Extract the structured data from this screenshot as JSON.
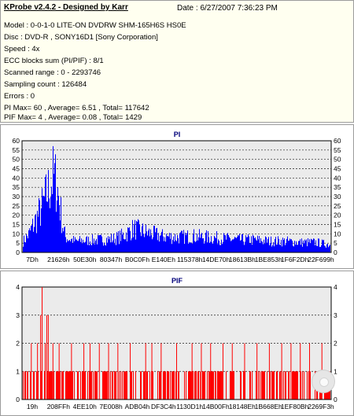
{
  "info": {
    "title": "KProbe v2.4.2 - Designed by Karr",
    "date": "Date : 6/27/2007 7:36:23 PM",
    "lines": [
      "Model : 0-0-1-0 LITE-ON DVDRW SHM-165H6S HS0E",
      "Disc : DVD-R , SONY16D1 [Sony Corporation]",
      "Speed : 4x",
      "ECC blocks sum (PI/PIF) : 8/1",
      "Scanned range : 0 - 2293746",
      "Sampling count : 126484",
      "Errors : 0",
      "PI Max= 60 , Average= 6.51 , Total= 117642",
      "PIF Max= 4 , Average= 0.08 , Total= 1429"
    ]
  },
  "chart_data": [
    {
      "type": "bar",
      "title": "PI",
      "ylim": [
        0,
        60
      ],
      "yticks": [
        0,
        5,
        10,
        15,
        20,
        25,
        30,
        35,
        40,
        45,
        50,
        55,
        60
      ],
      "xtick_labels": [
        "7Dh",
        "21626h",
        "50E30h",
        "80347h",
        "B0C0Fh",
        "E140Eh",
        "115378h",
        "14DE70h",
        "18613Bh",
        "1BE853h",
        "1F6F2Dh",
        "22F699h"
      ],
      "grid": true,
      "bar_color": "#0000ff",
      "envelope": [
        [
          0,
          8
        ],
        [
          0.02,
          14
        ],
        [
          0.04,
          24
        ],
        [
          0.06,
          34
        ],
        [
          0.08,
          47
        ],
        [
          0.1,
          60
        ],
        [
          0.11,
          56
        ],
        [
          0.12,
          40
        ],
        [
          0.13,
          22
        ],
        [
          0.14,
          12
        ],
        [
          0.17,
          9
        ],
        [
          0.25,
          10
        ],
        [
          0.3,
          11
        ],
        [
          0.33,
          14
        ],
        [
          0.36,
          19
        ],
        [
          0.4,
          16
        ],
        [
          0.45,
          13
        ],
        [
          0.5,
          12
        ],
        [
          0.55,
          13
        ],
        [
          0.6,
          12
        ],
        [
          0.65,
          11
        ],
        [
          0.7,
          10
        ],
        [
          0.75,
          10
        ],
        [
          0.8,
          9
        ],
        [
          0.85,
          9
        ],
        [
          0.9,
          8
        ],
        [
          0.95,
          8
        ],
        [
          1.0,
          6
        ]
      ]
    },
    {
      "type": "bar",
      "title": "PIF",
      "ylim": [
        0,
        4
      ],
      "yticks": [
        0,
        1,
        2,
        3,
        4
      ],
      "xtick_labels": [
        "19h",
        "208FFh",
        "4EE10h",
        "7E008h",
        "ADB04h",
        "DF3C4h",
        "1130D1h",
        "14B00Fh",
        "18148Eh",
        "1B668Eh",
        "1EF80Bh",
        "2269F3h"
      ],
      "grid": true,
      "bar_color": "#ff0000",
      "spikes": [
        [
          0.03,
          2
        ],
        [
          0.05,
          2
        ],
        [
          0.06,
          3
        ],
        [
          0.065,
          4
        ],
        [
          0.075,
          2
        ],
        [
          0.08,
          3
        ],
        [
          0.085,
          3
        ],
        [
          0.1,
          2
        ],
        [
          0.12,
          2
        ],
        [
          0.16,
          2
        ],
        [
          0.2,
          2
        ],
        [
          0.22,
          2
        ],
        [
          0.25,
          2
        ],
        [
          0.28,
          2
        ],
        [
          0.31,
          2
        ],
        [
          0.35,
          2
        ],
        [
          0.4,
          2
        ],
        [
          0.42,
          2
        ],
        [
          0.45,
          2
        ],
        [
          0.5,
          2
        ],
        [
          0.55,
          2
        ],
        [
          0.58,
          2
        ],
        [
          0.61,
          2
        ],
        [
          0.65,
          2
        ],
        [
          0.68,
          2
        ],
        [
          0.72,
          2
        ],
        [
          0.76,
          2
        ],
        [
          0.8,
          2
        ],
        [
          0.84,
          2
        ],
        [
          0.87,
          2
        ],
        [
          0.9,
          2
        ],
        [
          0.93,
          2
        ],
        [
          0.97,
          2
        ]
      ]
    }
  ]
}
